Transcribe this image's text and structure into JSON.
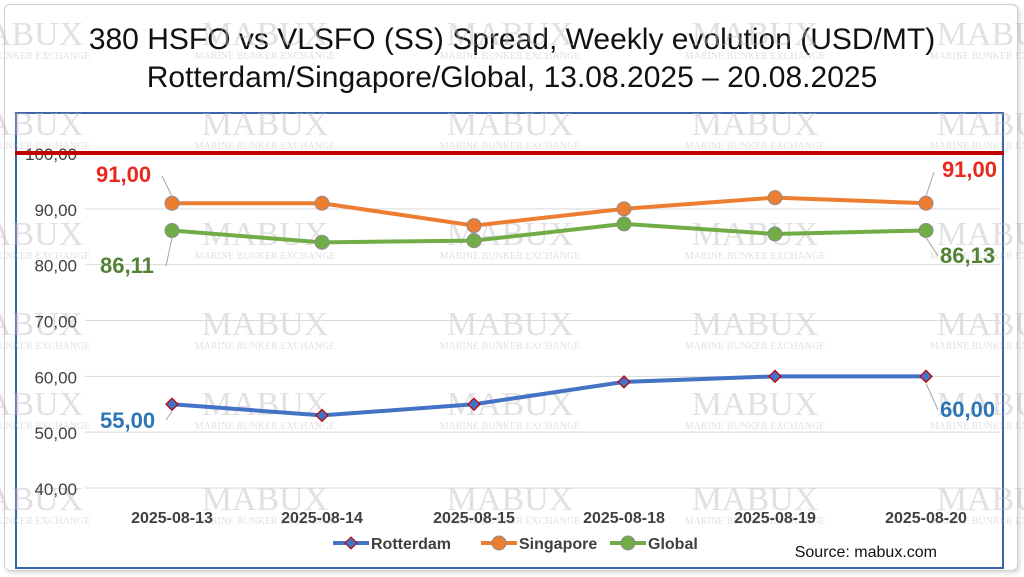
{
  "chart_data": {
    "type": "line",
    "title": "380 HSFO vs VLSFO (SS) Spread, Weekly evolution (USD/MT)",
    "subtitle": "Rotterdam/Singapore/Global, 13.08.2025 – 20.08.2025",
    "categories": [
      "2025-08-13",
      "2025-08-14",
      "2025-08-15",
      "2025-08-18",
      "2025-08-19",
      "2025-08-20"
    ],
    "ylim": [
      40,
      100
    ],
    "y_ticks": [
      "40,00",
      "50,00",
      "60,00",
      "70,00",
      "80,00",
      "90,00",
      "100,00"
    ],
    "reference_line": {
      "value": 100,
      "color": "#c00000"
    },
    "series": [
      {
        "name": "Rotterdam",
        "color": "#4472c4",
        "marker": "diamond",
        "values": [
          55,
          53,
          55,
          59,
          60,
          60
        ],
        "labels": {
          "first": "55,00",
          "last": "60,00"
        },
        "label_color": "#2e75b6"
      },
      {
        "name": "Singapore",
        "color": "#ed7d31",
        "marker": "circle",
        "values": [
          91,
          91,
          87,
          90,
          92,
          91
        ],
        "labels": {
          "first": "91,00",
          "last": "91,00"
        },
        "label_color": "#e8291c"
      },
      {
        "name": "Global",
        "color": "#70ad47",
        "marker": "circle",
        "values": [
          86.11,
          84,
          84.3,
          87.3,
          85.5,
          86.13
        ],
        "labels": {
          "first": "86,11",
          "last": "86,13"
        },
        "label_color": "#548235"
      }
    ],
    "legend_position": "bottom",
    "grid": true,
    "source": "Source: mabux.com"
  },
  "watermark": {
    "brand": "MABUX",
    "tagline": "Marine Bunker Exchange"
  }
}
